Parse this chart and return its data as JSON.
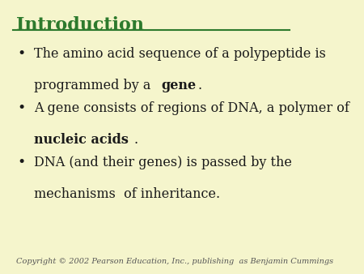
{
  "background_color": "#f5f5cc",
  "title": "Introduction",
  "title_color": "#2d7a2d",
  "title_fontsize": 16,
  "line_color": "#2d7a2d",
  "text_color": "#1a1a1a",
  "bullet_color": "#1a1a1a",
  "body_fontsize": 11.5,
  "copyright_text": "Copyright © 2002 Pearson Education, Inc., publishing  as Benjamin Cummings",
  "copyright_fontsize": 7,
  "bullets": [
    {
      "parts": [
        {
          "text": "The amino acid sequence of a polypeptide is\nprogrammed by a ",
          "bold": false
        },
        {
          "text": "gene",
          "bold": true
        },
        {
          "text": ".",
          "bold": false
        }
      ]
    },
    {
      "parts": [
        {
          "text": "A gene consists of regions of DNA, a polymer of\n",
          "bold": false
        },
        {
          "text": "nucleic acids",
          "bold": true
        },
        {
          "text": ".",
          "bold": false
        }
      ]
    },
    {
      "parts": [
        {
          "text": "DNA (and their genes) is passed by the\nmechanisms  of inheritance.",
          "bold": false
        }
      ]
    }
  ]
}
